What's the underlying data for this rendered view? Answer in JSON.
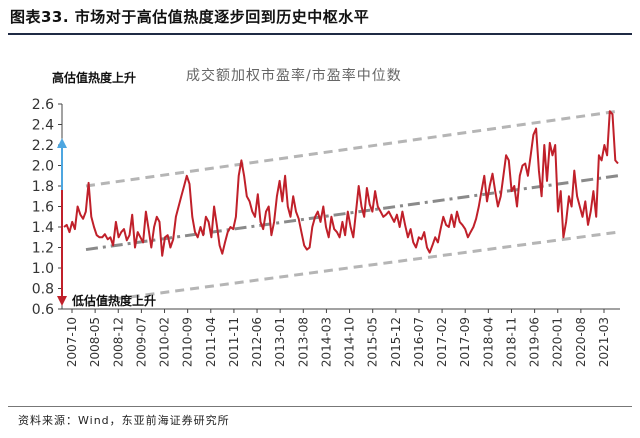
{
  "header": {
    "title": "图表33. 市场对于高估值热度逐步回到历史中枢水平"
  },
  "footer": {
    "source": "资料来源：Wind，东亚前海证券研究所"
  },
  "chart_data": {
    "type": "line",
    "series_label": "成交额加权市盈率/市盈率中位数",
    "annotations": {
      "top": "高估值热度上升",
      "bottom": "低估值热度上升"
    },
    "ylim": [
      0.6,
      2.6
    ],
    "yticks": [
      "2.6",
      "2.4",
      "2.2",
      "2.0",
      "1.8",
      "1.6",
      "1.4",
      "1.2",
      "1.0",
      "0.8",
      "0.6"
    ],
    "xticks": [
      "2007-10",
      "2008-05",
      "2008-12",
      "2009-07",
      "2010-02",
      "2010-09",
      "2011-04",
      "2011-11",
      "2012-06",
      "2013-01",
      "2013-08",
      "2014-03",
      "2014-10",
      "2015-05",
      "2015-12",
      "2016-07",
      "2017-02",
      "2017-09",
      "2018-04",
      "2018-11",
      "2019-06",
      "2020-01",
      "2020-08",
      "2021-03"
    ],
    "channel": {
      "upper": {
        "start": 1.8,
        "end": 2.53
      },
      "middle": {
        "start": 1.18,
        "end": 1.9
      },
      "lower": {
        "start": 0.66,
        "end": 1.35
      }
    },
    "series": [
      {
        "color": "#c0202a",
        "values": [
          1.4,
          1.42,
          1.35,
          1.45,
          1.38,
          1.6,
          1.52,
          1.48,
          1.55,
          1.83,
          1.5,
          1.4,
          1.32,
          1.3,
          1.3,
          1.33,
          1.28,
          1.3,
          1.22,
          1.45,
          1.3,
          1.35,
          1.38,
          1.27,
          1.32,
          1.52,
          1.2,
          1.35,
          1.3,
          1.25,
          1.55,
          1.38,
          1.2,
          1.4,
          1.5,
          1.45,
          1.12,
          1.3,
          1.32,
          1.2,
          1.28,
          1.5,
          1.6,
          1.7,
          1.8,
          1.9,
          1.82,
          1.5,
          1.35,
          1.3,
          1.4,
          1.32,
          1.5,
          1.45,
          1.3,
          1.6,
          1.42,
          1.22,
          1.14,
          1.25,
          1.35,
          1.4,
          1.38,
          1.5,
          1.9,
          2.05,
          1.9,
          1.7,
          1.65,
          1.55,
          1.5,
          1.72,
          1.45,
          1.38,
          1.55,
          1.6,
          1.32,
          1.45,
          1.7,
          1.85,
          1.65,
          1.9,
          1.6,
          1.5,
          1.7,
          1.55,
          1.48,
          1.35,
          1.22,
          1.18,
          1.2,
          1.4,
          1.5,
          1.55,
          1.45,
          1.6,
          1.4,
          1.3,
          1.5,
          1.38,
          1.35,
          1.3,
          1.45,
          1.32,
          1.55,
          1.4,
          1.3,
          1.55,
          1.8,
          1.6,
          1.5,
          1.78,
          1.62,
          1.55,
          1.75,
          1.6,
          1.55,
          1.5,
          1.52,
          1.55,
          1.5,
          1.45,
          1.52,
          1.4,
          1.55,
          1.42,
          1.3,
          1.38,
          1.25,
          1.2,
          1.3,
          1.28,
          1.35,
          1.2,
          1.15,
          1.22,
          1.3,
          1.25,
          1.38,
          1.5,
          1.42,
          1.4,
          1.52,
          1.4,
          1.55,
          1.45,
          1.42,
          1.38,
          1.3,
          1.35,
          1.4,
          1.48,
          1.6,
          1.75,
          1.9,
          1.65,
          1.8,
          1.92,
          1.75,
          1.6,
          1.7,
          1.9,
          2.1,
          2.05,
          1.75,
          1.8,
          1.6,
          1.9,
          2.0,
          2.02,
          1.9,
          2.1,
          2.3,
          2.36,
          1.95,
          1.7,
          2.2,
          1.85,
          2.22,
          2.1,
          2.2,
          1.55,
          1.75,
          1.3,
          1.45,
          1.7,
          1.6,
          1.95,
          1.7,
          1.6,
          1.5,
          1.65,
          1.42,
          1.55,
          1.75,
          1.5,
          2.1,
          2.05,
          2.2,
          2.1,
          2.53,
          2.5,
          2.05,
          2.02
        ]
      }
    ],
    "arrows": {
      "up_color": "#4da6e0",
      "down_color": "#c0202a"
    },
    "grid": false
  }
}
